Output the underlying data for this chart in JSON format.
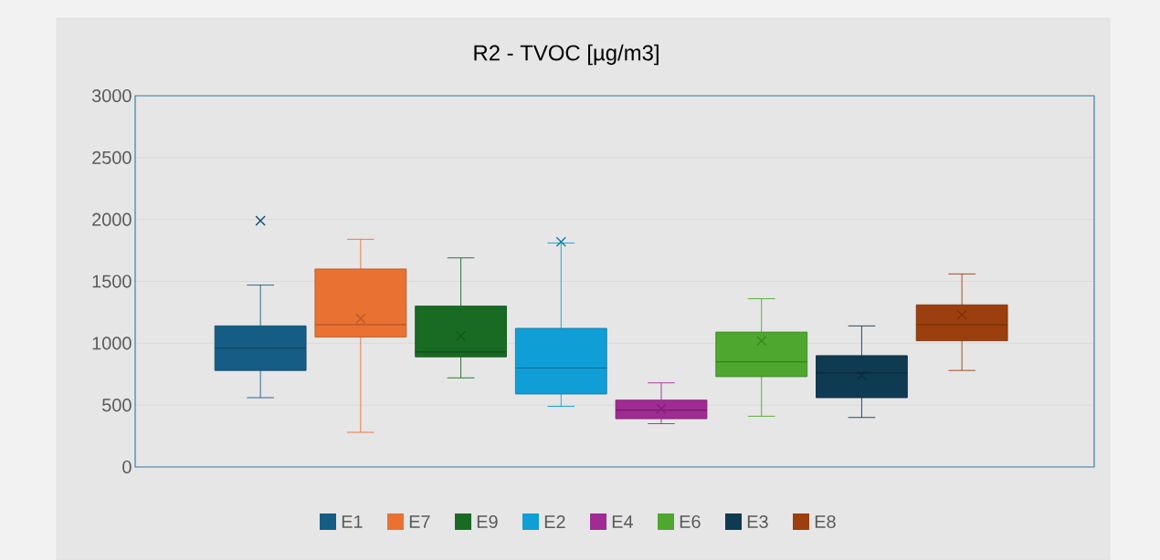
{
  "chart_data": {
    "type": "box",
    "title": "R2 -  TVOC [µg/m3]",
    "categories": [
      null
    ],
    "ylim": [
      0,
      3000
    ],
    "yticks": [
      0,
      500,
      1000,
      1500,
      2000,
      2500,
      3000
    ],
    "grid": "y",
    "legend": "bottom",
    "tick_labels": "y",
    "series": [
      {
        "name": "E1",
        "color": "#155d84",
        "boxes": [
          {
            "low": 560,
            "q1": 780,
            "median": 960,
            "q3": 1140,
            "high": 1470,
            "mean": 1990
          }
        ]
      },
      {
        "name": "E7",
        "color": "#e97132",
        "boxes": [
          {
            "low": 280,
            "q1": 1050,
            "median": 1150,
            "q3": 1600,
            "high": 1840,
            "mean": 1200
          }
        ]
      },
      {
        "name": "E9",
        "color": "#196b24",
        "boxes": [
          {
            "low": 720,
            "q1": 890,
            "median": 930,
            "q3": 1300,
            "high": 1690,
            "mean": 1060
          }
        ]
      },
      {
        "name": "E2",
        "color": "#0f9ed5",
        "boxes": [
          {
            "low": 490,
            "q1": 590,
            "median": 800,
            "q3": 1120,
            "high": 1810,
            "mean": 1820
          }
        ]
      },
      {
        "name": "E4",
        "color": "#a02b93",
        "boxes": [
          {
            "low": 350,
            "q1": 390,
            "median": 460,
            "q3": 540,
            "high": 680,
            "mean": 470
          }
        ]
      },
      {
        "name": "E6",
        "color": "#4ea72e",
        "boxes": [
          {
            "low": 410,
            "q1": 730,
            "median": 850,
            "q3": 1090,
            "high": 1360,
            "mean": 1020
          }
        ]
      },
      {
        "name": "E3",
        "color": "#0e3a52",
        "boxes": [
          {
            "low": 400,
            "q1": 560,
            "median": 760,
            "q3": 900,
            "high": 1140,
            "mean": 740
          }
        ]
      },
      {
        "name": "E8",
        "color": "#9c3f0e",
        "boxes": [
          {
            "low": 780,
            "q1": 1020,
            "median": 1150,
            "q3": 1310,
            "high": 1560,
            "mean": 1230
          }
        ]
      }
    ]
  }
}
